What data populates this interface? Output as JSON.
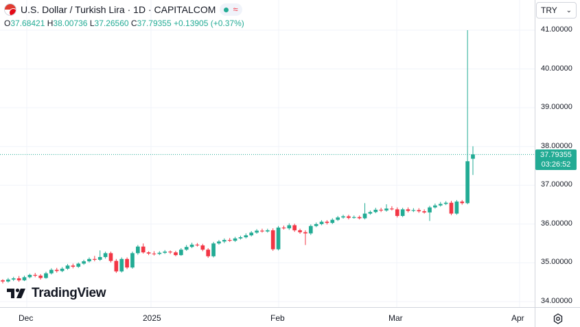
{
  "header": {
    "title": "U.S. Dollar / Turkish Lira · 1D · CAPITALCOM",
    "status_icon": "market-open-dot",
    "wave_symbol": "≈"
  },
  "ohlc": {
    "o_label": "O",
    "o": "37.68421",
    "h_label": "H",
    "h": "38.00736",
    "l_label": "L",
    "l": "37.26560",
    "c_label": "C",
    "c": "37.79355",
    "change": "+0.13905 (+0.37%)"
  },
  "currency": {
    "label": "TRY"
  },
  "price_tag": {
    "price": "37.79355",
    "countdown": "03:26:52"
  },
  "logo": {
    "text": "TradingView"
  },
  "colors": {
    "up": "#22ab94",
    "down": "#f23645",
    "grid": "#f0f3fa"
  },
  "chart_data": {
    "type": "candlestick",
    "title": "U.S. Dollar / Turkish Lira · 1D · CAPITALCOM",
    "ylim": [
      33.9,
      41.4
    ],
    "y_ticks": [
      "34.00000",
      "35.00000",
      "36.00000",
      "37.00000",
      "38.00000",
      "39.00000",
      "40.00000",
      "41.00000"
    ],
    "x_ticks": [
      "Dec",
      "2025",
      "Feb",
      "Mar",
      "Apr"
    ],
    "last_price": 37.79355,
    "candles": [
      [
        34.55,
        34.52,
        34.58,
        34.47
      ],
      [
        34.52,
        34.57,
        34.61,
        34.49
      ],
      [
        34.57,
        34.6,
        34.64,
        34.53
      ],
      [
        34.6,
        34.55,
        34.66,
        34.51
      ],
      [
        34.55,
        34.63,
        34.67,
        34.53
      ],
      [
        34.63,
        34.69,
        34.72,
        34.6
      ],
      [
        34.69,
        34.67,
        34.74,
        34.63
      ],
      [
        34.67,
        34.61,
        34.71,
        34.57
      ],
      [
        34.61,
        34.73,
        34.77,
        34.59
      ],
      [
        34.73,
        34.82,
        34.86,
        34.7
      ],
      [
        34.82,
        34.79,
        34.87,
        34.75
      ],
      [
        34.79,
        34.85,
        34.89,
        34.76
      ],
      [
        34.85,
        34.93,
        34.97,
        34.82
      ],
      [
        34.93,
        34.9,
        34.98,
        34.86
      ],
      [
        34.9,
        34.98,
        35.01,
        34.87
      ],
      [
        34.98,
        35.04,
        35.08,
        34.95
      ],
      [
        35.04,
        35.1,
        35.14,
        35.01
      ],
      [
        35.1,
        35.08,
        35.18,
        35.04
      ],
      [
        35.08,
        35.15,
        35.32,
        35.05
      ],
      [
        35.15,
        35.25,
        35.29,
        35.11
      ],
      [
        35.25,
        35.05,
        35.29,
        35.01
      ],
      [
        35.05,
        34.78,
        35.1,
        34.74
      ],
      [
        34.78,
        35.1,
        35.14,
        34.75
      ],
      [
        35.1,
        34.88,
        35.14,
        34.84
      ],
      [
        34.88,
        35.25,
        35.29,
        34.85
      ],
      [
        35.25,
        35.42,
        35.46,
        35.21
      ],
      [
        35.42,
        35.27,
        35.5,
        35.24
      ],
      [
        35.27,
        35.24,
        35.3,
        35.2
      ],
      [
        35.24,
        35.23,
        35.3,
        35.19
      ],
      [
        35.23,
        35.26,
        35.3,
        35.2
      ],
      [
        35.26,
        35.29,
        35.33,
        35.23
      ],
      [
        35.29,
        35.27,
        35.32,
        35.23
      ],
      [
        35.27,
        35.2,
        35.31,
        35.17
      ],
      [
        35.2,
        35.34,
        35.38,
        35.18
      ],
      [
        35.34,
        35.41,
        35.46,
        35.31
      ],
      [
        35.41,
        35.47,
        35.52,
        35.38
      ],
      [
        35.47,
        35.45,
        35.51,
        35.42
      ],
      [
        35.45,
        35.34,
        35.49,
        35.3
      ],
      [
        35.34,
        35.17,
        35.38,
        35.13
      ],
      [
        35.17,
        35.5,
        35.54,
        35.14
      ],
      [
        35.5,
        35.55,
        35.59,
        35.47
      ],
      [
        35.55,
        35.59,
        35.63,
        35.51
      ],
      [
        35.59,
        35.57,
        35.64,
        35.54
      ],
      [
        35.57,
        35.63,
        35.67,
        35.54
      ],
      [
        35.63,
        35.66,
        35.7,
        35.6
      ],
      [
        35.66,
        35.71,
        35.76,
        35.63
      ],
      [
        35.71,
        35.78,
        35.82,
        35.68
      ],
      [
        35.78,
        35.83,
        35.87,
        35.75
      ],
      [
        35.83,
        35.81,
        35.88,
        35.78
      ],
      [
        35.81,
        35.84,
        35.88,
        35.78
      ],
      [
        35.84,
        35.35,
        35.89,
        35.31
      ],
      [
        35.35,
        35.91,
        35.95,
        35.32
      ],
      [
        35.91,
        35.89,
        35.96,
        35.86
      ],
      [
        35.89,
        35.97,
        36.02,
        35.85
      ],
      [
        35.97,
        35.84,
        36.01,
        35.8
      ],
      [
        35.84,
        35.79,
        35.88,
        35.75
      ],
      [
        35.79,
        35.76,
        35.84,
        35.46
      ],
      [
        35.76,
        35.95,
        35.99,
        35.72
      ],
      [
        35.95,
        36.0,
        36.04,
        35.92
      ],
      [
        36.0,
        36.06,
        36.1,
        35.97
      ],
      [
        36.06,
        36.03,
        36.1,
        35.99
      ],
      [
        36.03,
        36.11,
        36.15,
        36.0
      ],
      [
        36.11,
        36.17,
        36.21,
        36.08
      ],
      [
        36.17,
        36.2,
        36.24,
        36.14
      ],
      [
        36.2,
        36.16,
        36.24,
        36.12
      ],
      [
        36.16,
        36.18,
        36.22,
        36.14
      ],
      [
        36.18,
        36.15,
        36.22,
        36.12
      ],
      [
        36.15,
        36.27,
        36.54,
        36.12
      ],
      [
        36.27,
        36.31,
        36.35,
        36.24
      ],
      [
        36.31,
        36.37,
        36.42,
        36.28
      ],
      [
        36.37,
        36.35,
        36.42,
        36.31
      ],
      [
        36.35,
        36.4,
        36.51,
        36.32
      ],
      [
        36.4,
        36.38,
        36.46,
        36.35
      ],
      [
        36.38,
        36.21,
        36.43,
        36.17
      ],
      [
        36.21,
        36.38,
        36.42,
        36.18
      ],
      [
        36.38,
        36.34,
        36.43,
        36.3
      ],
      [
        36.34,
        36.36,
        36.41,
        36.31
      ],
      [
        36.36,
        36.33,
        36.41,
        36.29
      ],
      [
        36.33,
        36.3,
        36.38,
        36.27
      ],
      [
        36.3,
        36.43,
        36.47,
        36.08
      ],
      [
        36.43,
        36.48,
        36.53,
        36.4
      ],
      [
        36.48,
        36.52,
        36.57,
        36.45
      ],
      [
        36.52,
        36.55,
        36.59,
        36.49
      ],
      [
        36.55,
        36.27,
        36.6,
        36.23
      ],
      [
        36.27,
        36.58,
        36.62,
        36.24
      ],
      [
        36.58,
        36.54,
        36.62,
        36.5
      ],
      [
        36.54,
        37.62,
        41.0,
        36.51
      ],
      [
        37.684,
        37.794,
        38.007,
        37.266
      ]
    ]
  }
}
